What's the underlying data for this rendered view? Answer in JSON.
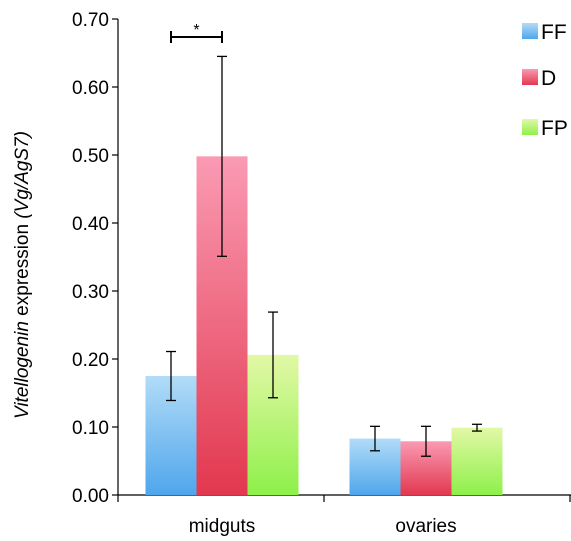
{
  "chart_data": {
    "type": "bar",
    "categories": [
      "midguts",
      "ovaries"
    ],
    "series": [
      {
        "name": "FF",
        "values": [
          0.175,
          0.083
        ],
        "errors": [
          0.036,
          0.018
        ],
        "color_top": "#b2dcf7",
        "color_bottom": "#4fa6ec"
      },
      {
        "name": "D",
        "values": [
          0.498,
          0.079
        ],
        "errors": [
          0.147,
          0.022
        ],
        "color_top": "#fa9ab3",
        "color_bottom": "#e2384f"
      },
      {
        "name": "FP",
        "values": [
          0.206,
          0.099
        ],
        "errors": [
          0.063,
          0.005
        ],
        "color_top": "#e2f8a6",
        "color_bottom": "#8ef04a"
      }
    ],
    "ylabel_italic": "Vitellogenin",
    "ylabel_normal": " expression ",
    "ylabel_paren": "(Vg/AgS7)",
    "ylim": [
      0,
      0.7
    ],
    "yticks": [
      "0.00",
      "0.10",
      "0.20",
      "0.30",
      "0.40",
      "0.50",
      "0.60",
      "0.70"
    ],
    "grid": false,
    "legend_position": "top-right",
    "annotations": [
      {
        "text": "*",
        "category": "midguts",
        "series_from": "FF",
        "series_to": "D"
      }
    ]
  }
}
